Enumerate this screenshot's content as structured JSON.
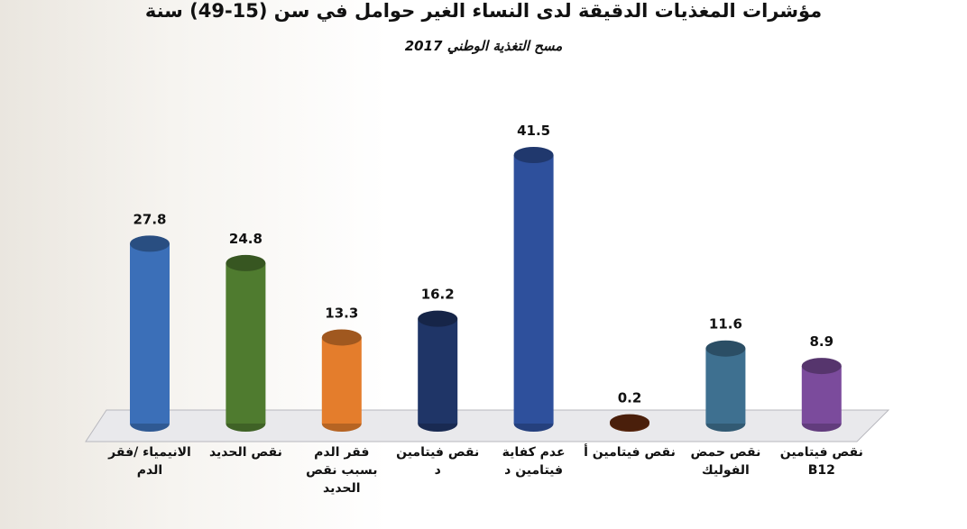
{
  "chart_data": {
    "type": "bar",
    "title": "مؤشرات المغذيات الدقيقة لدى النساء الغير حوامل في سن (15-49) سنة",
    "subtitle": "مسح التغذية الوطني 2017",
    "categories": [
      "الانيمياء /فقر الدم",
      "نقص الحديد",
      "فقر الدم بسبب نقص الحديد",
      "نقص فيتامين د",
      "عدم كفاية فيتامين د",
      "نقص فيتامين أ",
      "نقص حمض الفوليك",
      "نقص فيتامين B12"
    ],
    "values": [
      27.8,
      24.8,
      13.3,
      16.2,
      41.5,
      0.2,
      11.6,
      8.9
    ],
    "colors": [
      "#3b6fb8",
      "#4f7b2f",
      "#e47d2c",
      "#1f3567",
      "#2e509c",
      "#6a2d0f",
      "#3e7090",
      "#7b4b9c"
    ]
  }
}
